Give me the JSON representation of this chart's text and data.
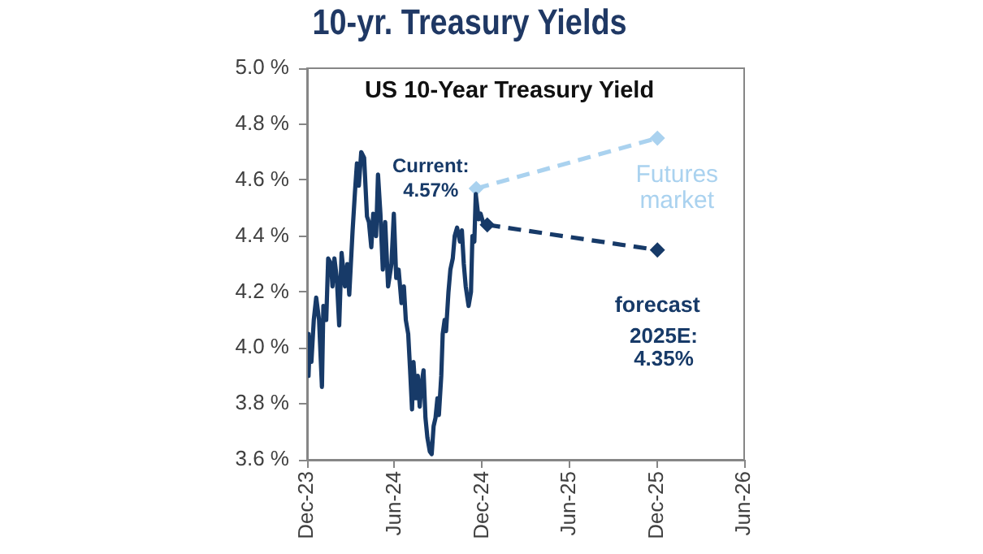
{
  "chart_data": {
    "type": "line",
    "title": "10-yr. Treasury Yields",
    "subtitle": "US 10-Year Treasury Yield",
    "series": [
      {
        "color": "#173a68",
        "marker": "none",
        "line_style": "solid",
        "x": [
          "2024-01-02",
          "2024-01-03",
          "2024-01-06",
          "2024-01-09",
          "2024-01-14",
          "2024-01-19",
          "2024-01-25",
          "2024-01-31",
          "2024-02-03",
          "2024-02-09",
          "2024-02-13",
          "2024-02-19",
          "2024-02-22",
          "2024-02-26",
          "2024-03-02",
          "2024-03-07",
          "2024-03-12",
          "2024-03-19",
          "2024-03-24",
          "2024-03-28",
          "2024-04-04",
          "2024-04-09",
          "2024-04-13",
          "2024-04-17",
          "2024-04-22",
          "2024-04-28",
          "2024-05-04",
          "2024-05-08",
          "2024-05-13",
          "2024-05-17",
          "2024-05-23",
          "2024-05-27",
          "2024-06-01",
          "2024-06-06",
          "2024-06-11",
          "2024-06-17",
          "2024-06-24",
          "2024-06-29",
          "2024-07-04",
          "2024-07-09",
          "2024-07-15",
          "2024-07-20",
          "2024-07-24",
          "2024-07-29",
          "2024-08-02",
          "2024-08-06",
          "2024-08-09",
          "2024-08-14",
          "2024-08-18",
          "2024-08-22",
          "2024-08-25",
          "2024-08-30",
          "2024-09-03",
          "2024-09-07",
          "2024-09-12",
          "2024-09-16",
          "2024-09-20",
          "2024-09-24",
          "2024-09-28",
          "2024-10-01",
          "2024-10-06",
          "2024-10-09",
          "2024-10-13",
          "2024-10-16",
          "2024-10-21",
          "2024-10-25",
          "2024-10-30",
          "2024-11-03",
          "2024-11-08",
          "2024-11-14",
          "2024-11-18",
          "2024-11-22",
          "2024-11-26",
          "2024-12-02",
          "2024-12-07",
          "2024-12-10",
          "2024-12-14",
          "2024-12-17",
          "2024-12-19",
          "2024-12-23",
          "2024-12-27",
          "2025-01-01",
          "2025-01-10"
        ],
        "values": [
          4.05,
          3.9,
          4.04,
          3.95,
          4.1,
          4.18,
          4.1,
          3.86,
          4.15,
          4.1,
          4.32,
          4.3,
          4.22,
          4.32,
          4.25,
          4.08,
          4.34,
          4.22,
          4.3,
          4.19,
          4.42,
          4.56,
          4.66,
          4.58,
          4.7,
          4.68,
          4.47,
          4.45,
          4.36,
          4.48,
          4.4,
          4.62,
          4.48,
          4.28,
          4.45,
          4.22,
          4.3,
          4.48,
          4.25,
          4.28,
          4.16,
          4.22,
          4.1,
          4.05,
          3.92,
          3.78,
          3.95,
          3.82,
          3.9,
          3.79,
          3.86,
          3.92,
          3.75,
          3.68,
          3.63,
          3.62,
          3.72,
          3.75,
          3.82,
          3.76,
          3.9,
          4.05,
          4.1,
          4.06,
          4.2,
          4.28,
          4.32,
          4.4,
          4.43,
          4.38,
          4.42,
          4.3,
          4.22,
          4.15,
          4.2,
          4.4,
          4.38,
          4.55,
          4.52,
          4.46,
          4.48,
          4.45,
          4.44
        ]
      },
      {
        "name": "Futures market",
        "color": "#aad2ef",
        "marker": "diamond",
        "line_style": "dashed",
        "x": [
          "2024-12-18",
          "2025-12-31"
        ],
        "values": [
          4.57,
          4.75
        ]
      },
      {
        "name": "forecast",
        "color": "#173a68",
        "marker": "diamond",
        "line_style": "dashed",
        "x": [
          "2025-01-10",
          "2025-12-31"
        ],
        "values": [
          4.44,
          4.35
        ]
      }
    ],
    "xlim": [
      "2023-12-31",
      "2026-06-30"
    ],
    "xticks": [
      {
        "value": "2023-12-31",
        "label": "Dec-23"
      },
      {
        "value": "2024-06-30",
        "label": "Jun-24"
      },
      {
        "value": "2024-12-31",
        "label": "Dec-24"
      },
      {
        "value": "2025-06-30",
        "label": "Jun-25"
      },
      {
        "value": "2025-12-31",
        "label": "Dec-25"
      },
      {
        "value": "2026-06-30",
        "label": "Jun-26"
      }
    ],
    "ylim": [
      3.6,
      5.0
    ],
    "yticks": [
      {
        "value": 3.6,
        "label": "3.6 %"
      },
      {
        "value": 3.8,
        "label": "3.8 %"
      },
      {
        "value": 4.0,
        "label": "4.0 %"
      },
      {
        "value": 4.2,
        "label": "4.2 %"
      },
      {
        "value": 4.4,
        "label": "4.4 %"
      },
      {
        "value": 4.6,
        "label": "4.6 %"
      },
      {
        "value": 4.8,
        "label": "4.8 %"
      },
      {
        "value": 5.0,
        "label": "5.0 %"
      }
    ],
    "grid": false,
    "legend": false,
    "annotations": [
      {
        "text": "Current: 4.57%",
        "x": "2024-12-18",
        "y": 4.57
      },
      "2025E: 4.35%"
    ]
  }
}
